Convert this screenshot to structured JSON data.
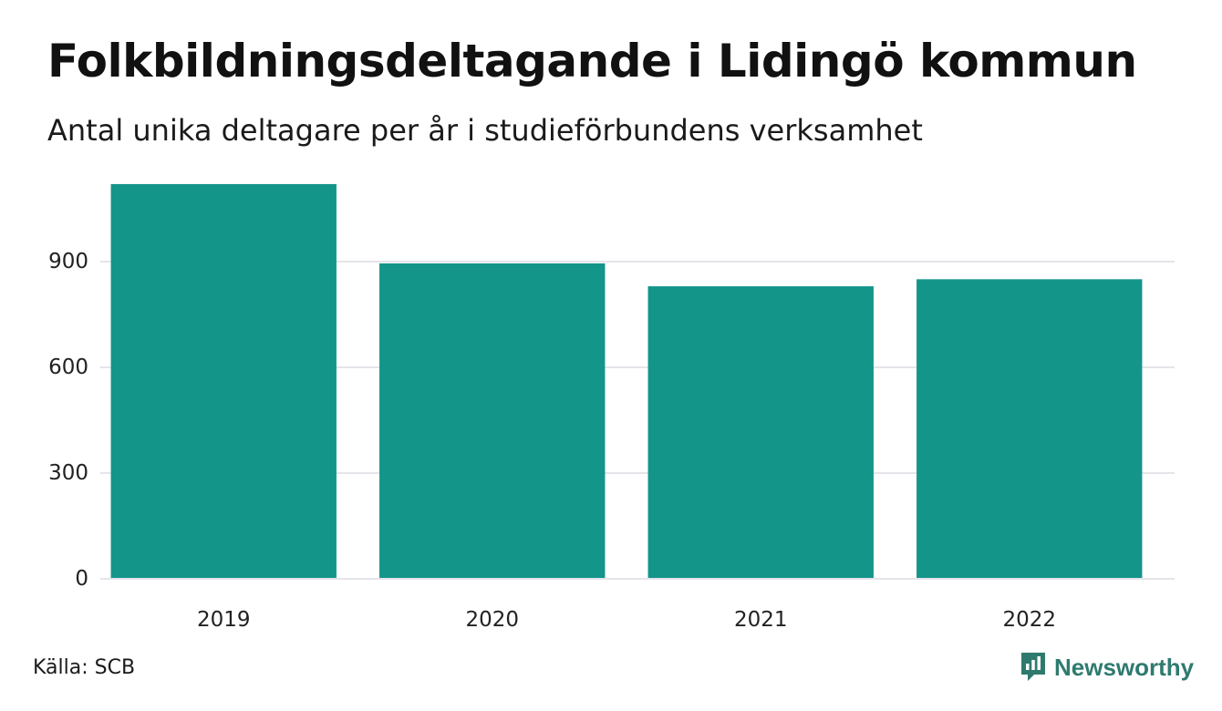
{
  "title": "Folkbildningsdeltagande i Lidingö kommun",
  "subtitle": "Antal unika deltagare per år i studieförbundens verksamhet",
  "source": "Källa: SCB",
  "brand": {
    "name": "Newsworthy",
    "icon": "newsworthy-logo-icon",
    "color": "#2f7a6f"
  },
  "chart_data": {
    "type": "bar",
    "categories": [
      "2019",
      "2020",
      "2021",
      "2022"
    ],
    "values": [
      1120,
      895,
      830,
      850
    ],
    "xlabel": "",
    "ylabel": "",
    "ylim": [
      0,
      1125
    ],
    "yticks": [
      0,
      300,
      600,
      900
    ],
    "grid": true,
    "bar_color": "#14958a",
    "grid_color": "#e4e4ea",
    "legend": "none"
  }
}
